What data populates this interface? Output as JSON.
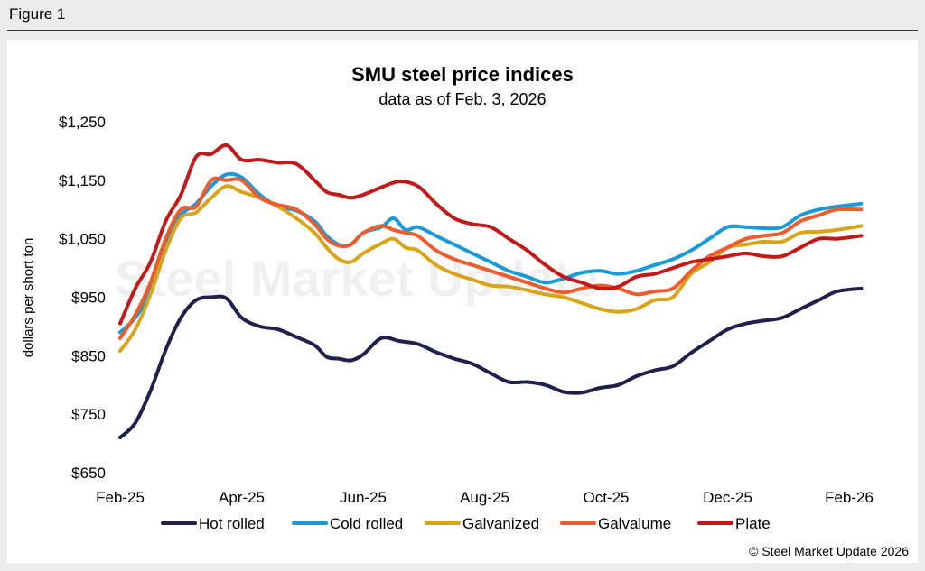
{
  "figure_label": "Figure 1",
  "copyright": "© Steel Market Update 2026",
  "watermark": "Steel Market Update",
  "chart_data": {
    "type": "line",
    "title": "SMU steel price indices",
    "subtitle": "data as of Feb. 3, 2026",
    "xlabel": "",
    "ylabel": "dollars per short ton",
    "ylim": [
      650,
      1250
    ],
    "yticks": [
      650,
      750,
      850,
      950,
      1050,
      1150,
      1250
    ],
    "ytick_labels": [
      "$650",
      "$750",
      "$850",
      "$950",
      "$1,050",
      "$1,150",
      "$1,250"
    ],
    "xlim": [
      0,
      12
    ],
    "xtick_labels": [
      "Feb-25",
      "Apr-25",
      "Jun-25",
      "Aug-25",
      "Oct-25",
      "Dec-25",
      "Feb-26"
    ],
    "xtick_positions": [
      0,
      2,
      4,
      6,
      8,
      10,
      12
    ],
    "x_unit": "months since Feb-25",
    "grid": false,
    "legend_position": "bottom",
    "series": [
      {
        "name": "Hot rolled",
        "color": "#221f4a",
        "points": [
          [
            0,
            710
          ],
          [
            0.25,
            735
          ],
          [
            0.5,
            790
          ],
          [
            0.75,
            860
          ],
          [
            1.0,
            915
          ],
          [
            1.25,
            945
          ],
          [
            1.5,
            950
          ],
          [
            1.75,
            948
          ],
          [
            2.0,
            915
          ],
          [
            2.3,
            900
          ],
          [
            2.6,
            895
          ],
          [
            2.9,
            882
          ],
          [
            3.2,
            868
          ],
          [
            3.4,
            848
          ],
          [
            3.6,
            845
          ],
          [
            3.8,
            842
          ],
          [
            4.0,
            852
          ],
          [
            4.3,
            880
          ],
          [
            4.6,
            875
          ],
          [
            4.9,
            870
          ],
          [
            5.2,
            856
          ],
          [
            5.5,
            845
          ],
          [
            5.8,
            836
          ],
          [
            6.1,
            820
          ],
          [
            6.4,
            805
          ],
          [
            6.7,
            805
          ],
          [
            7.0,
            800
          ],
          [
            7.3,
            788
          ],
          [
            7.6,
            787
          ],
          [
            7.9,
            795
          ],
          [
            8.2,
            800
          ],
          [
            8.5,
            815
          ],
          [
            8.8,
            825
          ],
          [
            9.1,
            832
          ],
          [
            9.4,
            855
          ],
          [
            9.7,
            875
          ],
          [
            10.0,
            895
          ],
          [
            10.3,
            905
          ],
          [
            10.6,
            910
          ],
          [
            10.9,
            915
          ],
          [
            11.2,
            930
          ],
          [
            11.5,
            945
          ],
          [
            11.8,
            960
          ],
          [
            12.2,
            965
          ]
        ]
      },
      {
        "name": "Cold rolled",
        "color": "#1a9ad6",
        "points": [
          [
            0,
            890
          ],
          [
            0.25,
            915
          ],
          [
            0.5,
            960
          ],
          [
            0.75,
            1040
          ],
          [
            1.0,
            1090
          ],
          [
            1.25,
            1110
          ],
          [
            1.5,
            1140
          ],
          [
            1.75,
            1160
          ],
          [
            2.0,
            1155
          ],
          [
            2.3,
            1125
          ],
          [
            2.6,
            1105
          ],
          [
            2.9,
            1098
          ],
          [
            3.2,
            1080
          ],
          [
            3.4,
            1055
          ],
          [
            3.6,
            1040
          ],
          [
            3.8,
            1040
          ],
          [
            4.0,
            1060
          ],
          [
            4.3,
            1070
          ],
          [
            4.5,
            1085
          ],
          [
            4.7,
            1065
          ],
          [
            4.9,
            1070
          ],
          [
            5.2,
            1055
          ],
          [
            5.5,
            1040
          ],
          [
            5.8,
            1025
          ],
          [
            6.1,
            1010
          ],
          [
            6.4,
            995
          ],
          [
            6.7,
            985
          ],
          [
            7.0,
            975
          ],
          [
            7.3,
            982
          ],
          [
            7.6,
            992
          ],
          [
            7.9,
            995
          ],
          [
            8.2,
            990
          ],
          [
            8.5,
            995
          ],
          [
            8.8,
            1005
          ],
          [
            9.1,
            1015
          ],
          [
            9.4,
            1030
          ],
          [
            9.7,
            1050
          ],
          [
            10.0,
            1070
          ],
          [
            10.3,
            1070
          ],
          [
            10.6,
            1068
          ],
          [
            10.9,
            1070
          ],
          [
            11.2,
            1090
          ],
          [
            11.5,
            1100
          ],
          [
            11.8,
            1105
          ],
          [
            12.2,
            1110
          ]
        ]
      },
      {
        "name": "Galvanized",
        "color": "#d8a418",
        "points": [
          [
            0,
            858
          ],
          [
            0.25,
            895
          ],
          [
            0.5,
            955
          ],
          [
            0.75,
            1030
          ],
          [
            1.0,
            1085
          ],
          [
            1.25,
            1095
          ],
          [
            1.5,
            1120
          ],
          [
            1.75,
            1140
          ],
          [
            2.0,
            1130
          ],
          [
            2.3,
            1120
          ],
          [
            2.6,
            1105
          ],
          [
            2.9,
            1085
          ],
          [
            3.2,
            1060
          ],
          [
            3.4,
            1035
          ],
          [
            3.6,
            1015
          ],
          [
            3.8,
            1010
          ],
          [
            4.0,
            1025
          ],
          [
            4.3,
            1042
          ],
          [
            4.5,
            1050
          ],
          [
            4.7,
            1035
          ],
          [
            4.9,
            1030
          ],
          [
            5.2,
            1005
          ],
          [
            5.5,
            990
          ],
          [
            5.8,
            980
          ],
          [
            6.1,
            970
          ],
          [
            6.4,
            968
          ],
          [
            6.7,
            962
          ],
          [
            7.0,
            955
          ],
          [
            7.3,
            950
          ],
          [
            7.6,
            940
          ],
          [
            7.9,
            930
          ],
          [
            8.2,
            925
          ],
          [
            8.5,
            930
          ],
          [
            8.8,
            945
          ],
          [
            9.1,
            950
          ],
          [
            9.4,
            990
          ],
          [
            9.7,
            1010
          ],
          [
            10.0,
            1035
          ],
          [
            10.3,
            1040
          ],
          [
            10.6,
            1045
          ],
          [
            10.9,
            1045
          ],
          [
            11.2,
            1060
          ],
          [
            11.5,
            1062
          ],
          [
            11.8,
            1065
          ],
          [
            12.2,
            1072
          ]
        ]
      },
      {
        "name": "Galvalume",
        "color": "#ec5c2e",
        "points": [
          [
            0,
            880
          ],
          [
            0.25,
            920
          ],
          [
            0.5,
            975
          ],
          [
            0.75,
            1050
          ],
          [
            1.0,
            1100
          ],
          [
            1.25,
            1105
          ],
          [
            1.5,
            1150
          ],
          [
            1.75,
            1150
          ],
          [
            2.0,
            1150
          ],
          [
            2.3,
            1120
          ],
          [
            2.6,
            1108
          ],
          [
            2.9,
            1100
          ],
          [
            3.2,
            1075
          ],
          [
            3.4,
            1050
          ],
          [
            3.6,
            1038
          ],
          [
            3.8,
            1040
          ],
          [
            4.0,
            1060
          ],
          [
            4.3,
            1072
          ],
          [
            4.5,
            1065
          ],
          [
            4.7,
            1060
          ],
          [
            4.9,
            1055
          ],
          [
            5.2,
            1030
          ],
          [
            5.5,
            1015
          ],
          [
            5.8,
            1005
          ],
          [
            6.1,
            995
          ],
          [
            6.4,
            985
          ],
          [
            6.7,
            975
          ],
          [
            7.0,
            965
          ],
          [
            7.3,
            958
          ],
          [
            7.6,
            965
          ],
          [
            7.9,
            970
          ],
          [
            8.2,
            965
          ],
          [
            8.5,
            955
          ],
          [
            8.8,
            960
          ],
          [
            9.1,
            965
          ],
          [
            9.4,
            995
          ],
          [
            9.7,
            1020
          ],
          [
            10.0,
            1035
          ],
          [
            10.3,
            1050
          ],
          [
            10.6,
            1055
          ],
          [
            10.9,
            1060
          ],
          [
            11.2,
            1080
          ],
          [
            11.5,
            1090
          ],
          [
            11.8,
            1100
          ],
          [
            12.2,
            1100
          ]
        ]
      },
      {
        "name": "Plate",
        "color": "#c21a1a",
        "points": [
          [
            0,
            905
          ],
          [
            0.25,
            965
          ],
          [
            0.5,
            1010
          ],
          [
            0.75,
            1080
          ],
          [
            1.0,
            1125
          ],
          [
            1.25,
            1190
          ],
          [
            1.5,
            1195
          ],
          [
            1.75,
            1210
          ],
          [
            2.0,
            1185
          ],
          [
            2.3,
            1185
          ],
          [
            2.6,
            1180
          ],
          [
            2.9,
            1178
          ],
          [
            3.2,
            1150
          ],
          [
            3.4,
            1130
          ],
          [
            3.6,
            1125
          ],
          [
            3.8,
            1120
          ],
          [
            4.0,
            1125
          ],
          [
            4.3,
            1138
          ],
          [
            4.6,
            1148
          ],
          [
            4.9,
            1140
          ],
          [
            5.2,
            1110
          ],
          [
            5.5,
            1085
          ],
          [
            5.8,
            1075
          ],
          [
            6.1,
            1070
          ],
          [
            6.4,
            1050
          ],
          [
            6.7,
            1030
          ],
          [
            7.0,
            1005
          ],
          [
            7.3,
            985
          ],
          [
            7.6,
            975
          ],
          [
            7.9,
            965
          ],
          [
            8.2,
            968
          ],
          [
            8.5,
            985
          ],
          [
            8.8,
            990
          ],
          [
            9.1,
            1000
          ],
          [
            9.4,
            1010
          ],
          [
            9.7,
            1015
          ],
          [
            10.0,
            1020
          ],
          [
            10.3,
            1025
          ],
          [
            10.6,
            1020
          ],
          [
            10.9,
            1020
          ],
          [
            11.2,
            1035
          ],
          [
            11.5,
            1050
          ],
          [
            11.8,
            1050
          ],
          [
            12.2,
            1055
          ]
        ]
      }
    ]
  }
}
